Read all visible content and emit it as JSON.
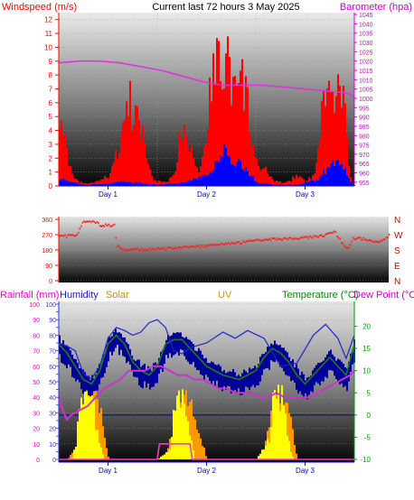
{
  "header": {
    "left_label": "Windspeed (m/s)",
    "title": "Current last 72 hours 3 May 2025",
    "right_label": "Barometer (hpa)"
  },
  "bottom_header": {
    "rainfall": "Rainfall (mm)",
    "humidity": "Humidity",
    "solar": "Solar",
    "uv": "UV",
    "temperature": "Temperature (°C)",
    "dewpoint": "Dew Point (°C"
  },
  "colors": {
    "wind": "#ff0000",
    "gust": "#0000ff",
    "barometer": "#dd33dd",
    "direction": "#ff2222",
    "rain": "#ff33cc",
    "humidity": "#2222cc",
    "solar": "#ff9900",
    "uv": "#ffff00",
    "temperature": "#227722",
    "dewpoint": "#cc33cc",
    "left_axis": "#ff0000",
    "right_axis": "#cc00cc",
    "right_axis_bottom": "#009900",
    "humidity_axis": "#3333cc",
    "solar_label": "#cc8800",
    "uv_label": "#cc9900"
  },
  "chart_data": [
    {
      "type": "area",
      "name": "wind-barometer",
      "x_ticks": [
        "Day 1",
        "Day 2",
        "Day 3"
      ],
      "left_axis": {
        "title": "Windspeed (m/s)",
        "range": [
          0,
          12.5
        ],
        "ticks": [
          0,
          1,
          2,
          3,
          4,
          5,
          6,
          7,
          8,
          9,
          10,
          11,
          12
        ]
      },
      "right_axis": {
        "title": "Barometer (hpa)",
        "range": [
          953,
          1046
        ],
        "ticks": [
          955,
          960,
          965,
          970,
          975,
          980,
          985,
          990,
          995,
          1000,
          1005,
          1010,
          1015,
          1020,
          1025,
          1030,
          1035,
          1040,
          1045
        ]
      },
      "x_range": [
        0,
        72
      ],
      "wind_gust_envelope": [
        [
          0,
          6.5
        ],
        [
          1,
          5
        ],
        [
          2,
          3
        ],
        [
          3,
          1
        ],
        [
          4,
          0.5
        ],
        [
          6,
          0.2
        ],
        [
          8,
          0.3
        ],
        [
          10,
          0.5
        ],
        [
          12,
          1
        ],
        [
          14,
          3
        ],
        [
          15,
          5
        ],
        [
          16,
          6.5
        ],
        [
          17,
          8
        ],
        [
          18,
          6
        ],
        [
          19,
          7
        ],
        [
          20,
          5
        ],
        [
          21,
          3
        ],
        [
          22,
          1.5
        ],
        [
          23,
          0.5
        ],
        [
          26,
          0.3
        ],
        [
          28,
          1
        ],
        [
          29,
          4
        ],
        [
          30,
          6
        ],
        [
          31,
          5
        ],
        [
          32,
          4
        ],
        [
          33,
          2
        ],
        [
          34,
          1.5
        ],
        [
          35,
          3
        ],
        [
          36,
          6
        ],
        [
          37,
          10
        ],
        [
          38,
          12
        ],
        [
          39,
          11
        ],
        [
          40,
          10.5
        ],
        [
          41,
          12
        ],
        [
          42,
          10
        ],
        [
          43,
          8
        ],
        [
          44,
          10
        ],
        [
          45,
          9
        ],
        [
          46,
          7
        ],
        [
          47,
          4
        ],
        [
          48,
          2
        ],
        [
          49,
          1
        ],
        [
          50,
          2
        ],
        [
          51,
          1
        ],
        [
          52,
          0.5
        ],
        [
          54,
          0.3
        ],
        [
          56,
          0.5
        ],
        [
          58,
          1
        ],
        [
          60,
          0.5
        ],
        [
          62,
          1
        ],
        [
          63,
          3
        ],
        [
          64,
          8
        ],
        [
          65,
          9
        ],
        [
          66,
          8.5
        ],
        [
          67,
          7
        ],
        [
          68,
          8.5
        ],
        [
          69,
          9
        ],
        [
          70,
          4
        ],
        [
          71,
          0.5
        ],
        [
          72,
          0
        ]
      ],
      "wind_average_envelope": [
        [
          0,
          0.7
        ],
        [
          3,
          0.3
        ],
        [
          6,
          0.1
        ],
        [
          12,
          0.2
        ],
        [
          15,
          0.4
        ],
        [
          18,
          0.3
        ],
        [
          24,
          0.1
        ],
        [
          30,
          0.3
        ],
        [
          36,
          1
        ],
        [
          38,
          2
        ],
        [
          40,
          3
        ],
        [
          41,
          3.2
        ],
        [
          42,
          2.5
        ],
        [
          44,
          2
        ],
        [
          46,
          1.2
        ],
        [
          48,
          0.3
        ],
        [
          52,
          0.1
        ],
        [
          58,
          0.1
        ],
        [
          63,
          0.6
        ],
        [
          65,
          1.5
        ],
        [
          67,
          2
        ],
        [
          69,
          1.8
        ],
        [
          71,
          0.3
        ],
        [
          72,
          0
        ]
      ],
      "barometer": [
        [
          0,
          1019
        ],
        [
          5,
          1020
        ],
        [
          10,
          1020
        ],
        [
          15,
          1019
        ],
        [
          20,
          1017
        ],
        [
          25,
          1015
        ],
        [
          30,
          1012
        ],
        [
          35,
          1009
        ],
        [
          40,
          1007
        ],
        [
          45,
          1007
        ],
        [
          50,
          1007
        ],
        [
          55,
          1006
        ],
        [
          60,
          1005
        ],
        [
          65,
          1004
        ],
        [
          70,
          1003
        ],
        [
          72,
          1001
        ]
      ]
    },
    {
      "type": "scatter",
      "name": "wind-direction",
      "left_axis": {
        "range": [
          0,
          360
        ],
        "ticks": [
          0,
          90,
          180,
          270,
          360
        ]
      },
      "right_labels": [
        "N",
        "W",
        "S",
        "E",
        "N"
      ],
      "x_range": [
        0,
        72
      ],
      "direction": [
        [
          0,
          265
        ],
        [
          2,
          262
        ],
        [
          4,
          267
        ],
        [
          5,
          345
        ],
        [
          8,
          345
        ],
        [
          9,
          325
        ],
        [
          12,
          325
        ],
        [
          12.5,
          205
        ],
        [
          14,
          180
        ],
        [
          20,
          185
        ],
        [
          25,
          190
        ],
        [
          30,
          200
        ],
        [
          35,
          210
        ],
        [
          40,
          225
        ],
        [
          45,
          240
        ],
        [
          50,
          245
        ],
        [
          52,
          250
        ],
        [
          55,
          255
        ],
        [
          58,
          265
        ],
        [
          60,
          290
        ],
        [
          61,
          250
        ],
        [
          62,
          210
        ],
        [
          63,
          180
        ],
        [
          64,
          250
        ],
        [
          66,
          245
        ],
        [
          68,
          235
        ],
        [
          70,
          230
        ],
        [
          72,
          265
        ]
      ]
    },
    {
      "type": "area",
      "name": "rain-humidity-solar-uv-temperature",
      "left_axis": {
        "title": "Rainfall (mm)",
        "range": [
          0,
          100
        ],
        "ticks": [
          0,
          5,
          10,
          15,
          20,
          25,
          30,
          35,
          40,
          45,
          50,
          55,
          60,
          65,
          70,
          75,
          80,
          85,
          90,
          95,
          100
        ]
      },
      "humidity_axis": {
        "title": "Humidity",
        "range": [
          0,
          100
        ],
        "ticks": [
          0,
          5,
          10,
          15,
          20,
          25,
          30,
          35,
          40,
          45,
          50,
          55,
          60,
          65,
          70,
          75,
          80,
          85,
          90,
          95,
          100
        ]
      },
      "right_axis": {
        "title": "Temperature (°C)",
        "range": [
          -10,
          25
        ],
        "ticks": [
          -10,
          -5,
          0,
          5,
          10,
          15,
          20
        ]
      },
      "x_ticks": [
        "Day 1",
        "Day 2",
        "Day 3"
      ],
      "x_range": [
        0,
        72
      ],
      "solar": [
        [
          0,
          0
        ],
        [
          2,
          0
        ],
        [
          4,
          10
        ],
        [
          6,
          40
        ],
        [
          8,
          55
        ],
        [
          10,
          40
        ],
        [
          12,
          0
        ],
        [
          24,
          0
        ],
        [
          26,
          5
        ],
        [
          28,
          25
        ],
        [
          30,
          50
        ],
        [
          31,
          55
        ],
        [
          33,
          30
        ],
        [
          36,
          0
        ],
        [
          48,
          0
        ],
        [
          50,
          10
        ],
        [
          52,
          40
        ],
        [
          54,
          50
        ],
        [
          56,
          35
        ],
        [
          58,
          0
        ],
        [
          72,
          0
        ]
      ],
      "uv": [
        [
          0,
          0
        ],
        [
          3,
          0
        ],
        [
          4,
          15
        ],
        [
          5,
          40
        ],
        [
          6,
          55
        ],
        [
          7,
          50
        ],
        [
          8,
          45
        ],
        [
          9,
          30
        ],
        [
          10,
          10
        ],
        [
          11,
          0
        ],
        [
          24,
          0
        ],
        [
          27,
          10
        ],
        [
          28,
          45
        ],
        [
          29,
          55
        ],
        [
          30,
          50
        ],
        [
          31,
          40
        ],
        [
          32,
          15
        ],
        [
          33,
          0
        ],
        [
          48,
          0
        ],
        [
          51,
          15
        ],
        [
          52,
          45
        ],
        [
          53,
          55
        ],
        [
          54,
          52
        ],
        [
          55,
          35
        ],
        [
          56,
          10
        ],
        [
          57,
          0
        ],
        [
          72,
          0
        ]
      ],
      "humidity": [
        [
          0,
          75
        ],
        [
          2,
          73
        ],
        [
          4,
          70
        ],
        [
          6,
          55
        ],
        [
          8,
          52
        ],
        [
          10,
          60
        ],
        [
          12,
          78
        ],
        [
          14,
          85
        ],
        [
          16,
          83
        ],
        [
          18,
          80
        ],
        [
          20,
          82
        ],
        [
          22,
          88
        ],
        [
          24,
          90
        ],
        [
          26,
          85
        ],
        [
          28,
          70
        ],
        [
          30,
          68
        ],
        [
          32,
          72
        ],
        [
          36,
          75
        ],
        [
          40,
          82
        ],
        [
          43,
          78
        ],
        [
          46,
          83
        ],
        [
          50,
          78
        ],
        [
          54,
          60
        ],
        [
          58,
          62
        ],
        [
          62,
          80
        ],
        [
          65,
          87
        ],
        [
          68,
          78
        ],
        [
          70,
          65
        ],
        [
          72,
          80
        ]
      ],
      "rainfall": [
        [
          0,
          0
        ],
        [
          24,
          0
        ],
        [
          24.5,
          10
        ],
        [
          32,
          10
        ],
        [
          32.5,
          0
        ],
        [
          72,
          0
        ]
      ],
      "temperature": [
        [
          0,
          15
        ],
        [
          2,
          13
        ],
        [
          4,
          10
        ],
        [
          6,
          7
        ],
        [
          8,
          6
        ],
        [
          10,
          9
        ],
        [
          12,
          15
        ],
        [
          14,
          17
        ],
        [
          16,
          15
        ],
        [
          18,
          11
        ],
        [
          20,
          9
        ],
        [
          22,
          8
        ],
        [
          24,
          10
        ],
        [
          26,
          15
        ],
        [
          28,
          16
        ],
        [
          30,
          16
        ],
        [
          32,
          14
        ],
        [
          34,
          12
        ],
        [
          36,
          10
        ],
        [
          40,
          8
        ],
        [
          44,
          7
        ],
        [
          48,
          9
        ],
        [
          50,
          12
        ],
        [
          52,
          14
        ],
        [
          54,
          13
        ],
        [
          56,
          11
        ],
        [
          58,
          8
        ],
        [
          60,
          6
        ],
        [
          62,
          8
        ],
        [
          64,
          10
        ],
        [
          66,
          12
        ],
        [
          68,
          10
        ],
        [
          70,
          8
        ],
        [
          72,
          15
        ]
      ],
      "dewpoint": [
        [
          0,
          4
        ],
        [
          1,
          1
        ],
        [
          2,
          -1
        ],
        [
          3,
          0
        ],
        [
          5,
          1
        ],
        [
          7,
          2
        ],
        [
          9,
          4
        ],
        [
          11,
          6
        ],
        [
          13,
          7
        ],
        [
          15,
          8
        ],
        [
          17,
          10
        ],
        [
          19,
          10
        ],
        [
          21,
          10
        ],
        [
          23,
          11
        ],
        [
          25,
          11
        ],
        [
          27,
          10
        ],
        [
          29,
          9
        ],
        [
          31,
          9
        ],
        [
          33,
          8
        ],
        [
          35,
          8
        ],
        [
          37,
          7
        ],
        [
          39,
          6
        ],
        [
          41,
          6
        ],
        [
          43,
          5
        ],
        [
          45,
          5
        ],
        [
          47,
          5
        ],
        [
          49,
          4
        ],
        [
          51,
          4
        ],
        [
          53,
          5
        ],
        [
          55,
          4
        ],
        [
          57,
          4
        ],
        [
          59,
          4
        ],
        [
          61,
          4
        ],
        [
          63,
          5
        ],
        [
          65,
          6
        ],
        [
          67,
          7
        ],
        [
          69,
          8
        ],
        [
          71,
          9
        ],
        [
          72,
          10
        ]
      ]
    }
  ]
}
